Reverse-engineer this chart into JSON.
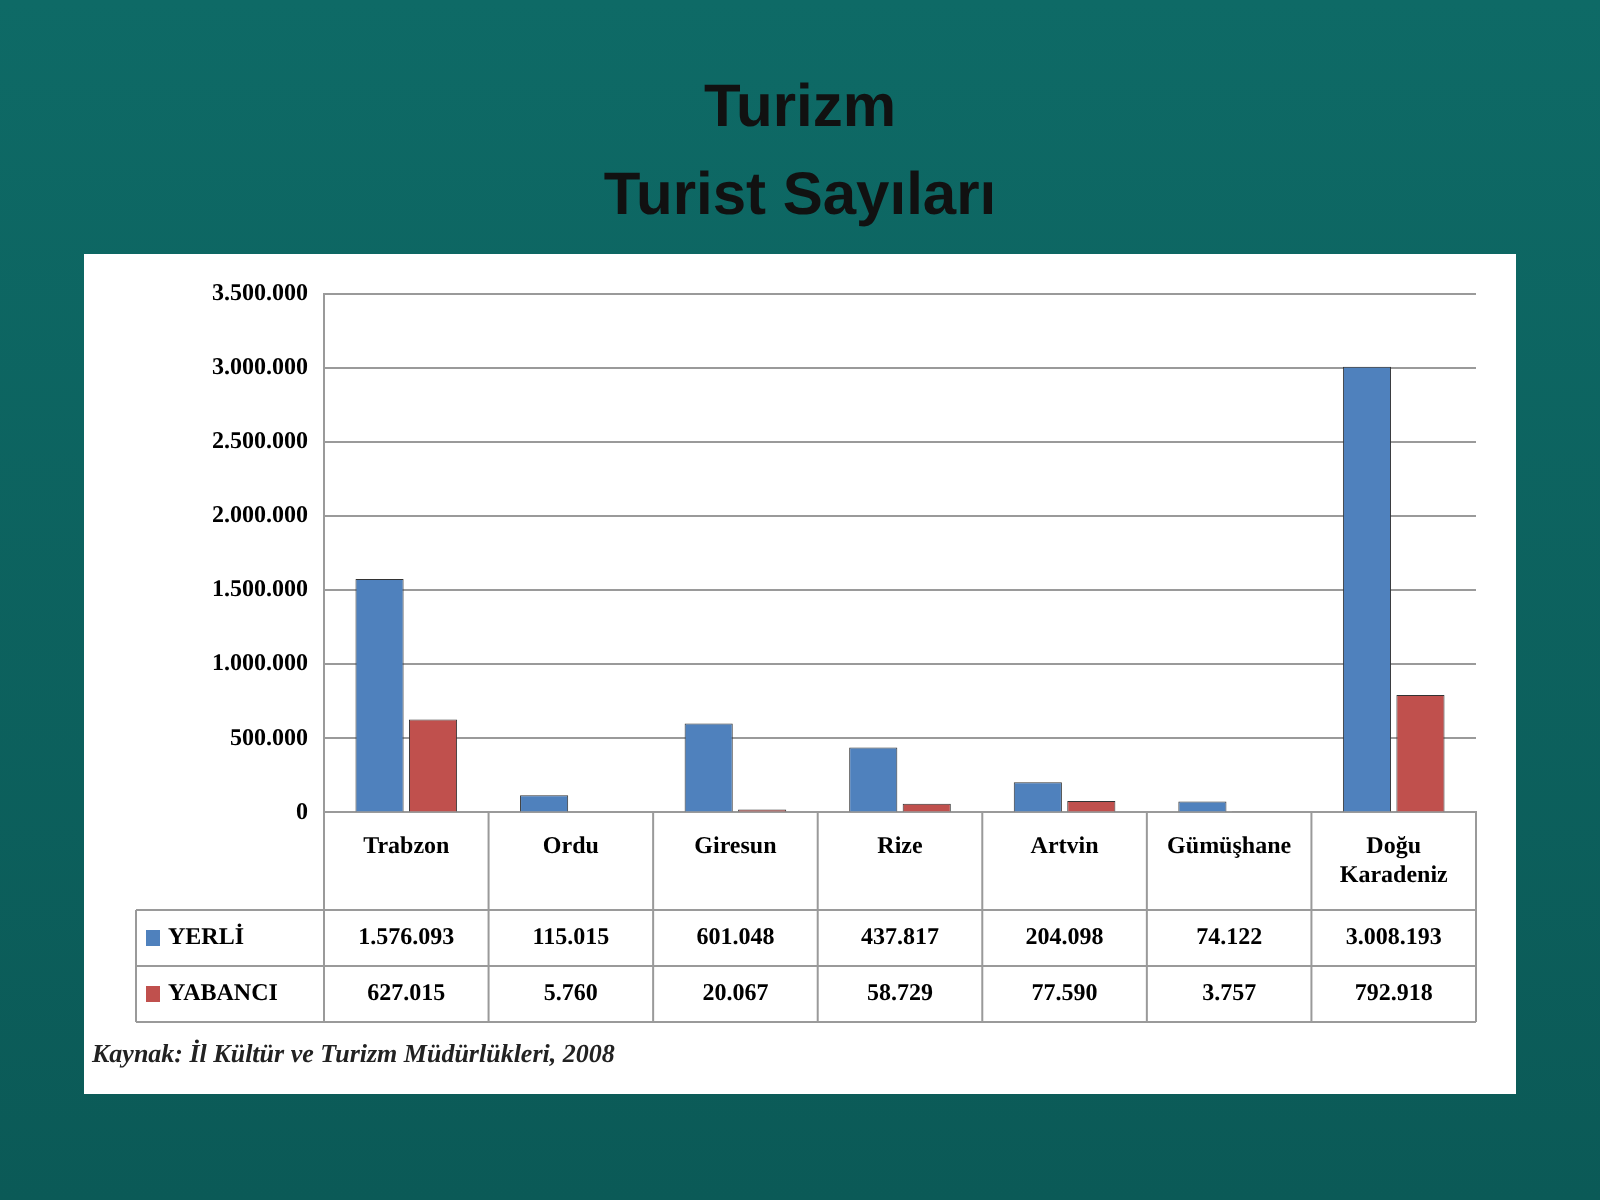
{
  "chart_data": {
    "type": "bar",
    "title": "Turizm",
    "subtitle": "Turist Sayıları",
    "categories": [
      "Trabzon",
      "Ordu",
      "Giresun",
      "Rize",
      "Artvin",
      "Gümüşhane",
      "Doğu Karadeniz"
    ],
    "series": [
      {
        "name": "YERLİ",
        "color": "#4f81bd",
        "values": [
          1576093,
          115015,
          601048,
          437817,
          204098,
          74122,
          3008193
        ],
        "value_labels": [
          "1.576.093",
          "115.015",
          "601.048",
          "437.817",
          "204.098",
          "74.122",
          "3.008.193"
        ]
      },
      {
        "name": "YABANCI",
        "color": "#c0504d",
        "values": [
          627015,
          5760,
          20067,
          58729,
          77590,
          3757,
          792918
        ],
        "value_labels": [
          "627.015",
          "5.760",
          "20.067",
          "58.729",
          "77.590",
          "3.757",
          "792.918"
        ]
      }
    ],
    "ylim": [
      0,
      3500000
    ],
    "yticks": [
      0,
      {
        "value": 500000,
        "label": "500.000"
      },
      {
        "value": 1000000,
        "label": "1.000.000"
      },
      {
        "value": 1500000,
        "label": "1.500.000"
      },
      {
        "value": 2000000,
        "label": "2.000.000"
      },
      {
        "value": 2500000,
        "label": "2.500.000"
      },
      {
        "value": 3000000,
        "label": "3.000.000"
      },
      {
        "value": 3500000,
        "label": "3.500.000"
      }
    ],
    "grid": "y",
    "legend": "bottom left",
    "annotations": [
      "Kaynak: İl Kültür ve Turizm Müdürlükleri, 2008"
    ]
  }
}
